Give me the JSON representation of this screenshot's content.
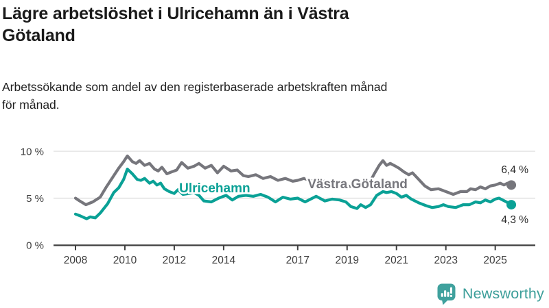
{
  "header": {
    "title_lines": [
      "Lägre arbetslöshet i Ulricehamn än i Västra",
      "Götaland"
    ],
    "subtitle_lines": [
      "Arbetssökande som andel av den registerbaserade arbetskraften månad",
      "för månad."
    ]
  },
  "footer": {
    "brand": "Newsworthy",
    "brand_color": "#3b9e99",
    "logo_icon": "bar-chart-speech-bubble"
  },
  "chart_data": {
    "type": "line",
    "title": "Lägre arbetslöshet i Ulricehamn än i Västra Götaland",
    "subtitle": "Arbetssökande som andel av den registerbaserade arbetskraften månad för månad.",
    "unit": "%",
    "grid": "horizontal-only",
    "legend_position": "inline-labels",
    "x_axis": {
      "ticks": [
        2008,
        2010,
        2012,
        2014,
        2017,
        2019,
        2021,
        2023,
        2025
      ],
      "tick_labels": [
        "2008",
        "2010",
        "2012",
        "2014",
        "2017",
        "2019",
        "2021",
        "2023",
        "2025"
      ],
      "range": [
        2007.1,
        2026.6
      ]
    },
    "y_axis": {
      "ticks": [
        0,
        5,
        10
      ],
      "tick_labels": [
        "0 %",
        "5 %",
        "10 %"
      ],
      "gridlines": [
        5,
        10
      ],
      "range": [
        0,
        11.9
      ]
    },
    "series": [
      {
        "name": "Västra Götaland",
        "color": "#76767c",
        "end_label": "6,4 %",
        "end_label_side": "above",
        "label_pos": [
          2017.4,
          6.05
        ],
        "points": [
          [
            2008.0,
            5.0
          ],
          [
            2008.17,
            4.7
          ],
          [
            2008.42,
            4.3
          ],
          [
            2008.7,
            4.6
          ],
          [
            2009.0,
            5.1
          ],
          [
            2009.25,
            6.2
          ],
          [
            2009.5,
            7.2
          ],
          [
            2009.75,
            8.2
          ],
          [
            2009.95,
            8.9
          ],
          [
            2010.1,
            9.5
          ],
          [
            2010.3,
            8.9
          ],
          [
            2010.45,
            8.7
          ],
          [
            2010.6,
            9.0
          ],
          [
            2010.8,
            8.5
          ],
          [
            2011.0,
            8.7
          ],
          [
            2011.2,
            8.1
          ],
          [
            2011.35,
            7.9
          ],
          [
            2011.5,
            8.3
          ],
          [
            2011.7,
            7.6
          ],
          [
            2011.9,
            7.8
          ],
          [
            2012.1,
            8.0
          ],
          [
            2012.3,
            8.8
          ],
          [
            2012.55,
            8.2
          ],
          [
            2012.8,
            8.4
          ],
          [
            2013.0,
            8.7
          ],
          [
            2013.25,
            8.2
          ],
          [
            2013.5,
            8.5
          ],
          [
            2013.75,
            7.7
          ],
          [
            2014.0,
            8.4
          ],
          [
            2014.3,
            7.9
          ],
          [
            2014.55,
            8.0
          ],
          [
            2014.8,
            7.4
          ],
          [
            2015.0,
            7.3
          ],
          [
            2015.3,
            7.5
          ],
          [
            2015.6,
            7.1
          ],
          [
            2015.9,
            7.3
          ],
          [
            2016.2,
            6.9
          ],
          [
            2016.5,
            7.1
          ],
          [
            2016.8,
            6.8
          ],
          [
            2017.0,
            6.9
          ],
          [
            2017.25,
            7.1
          ],
          [
            2017.5,
            6.9
          ],
          [
            2017.8,
            6.7
          ],
          [
            2018.1,
            6.8
          ],
          [
            2018.4,
            6.5
          ],
          [
            2018.7,
            6.4
          ],
          [
            2019.0,
            6.3
          ],
          [
            2019.3,
            6.2
          ],
          [
            2019.6,
            6.3
          ],
          [
            2019.9,
            6.6
          ],
          [
            2020.1,
            7.6
          ],
          [
            2020.3,
            8.5
          ],
          [
            2020.45,
            9.0
          ],
          [
            2020.6,
            8.5
          ],
          [
            2020.75,
            8.7
          ],
          [
            2020.9,
            8.5
          ],
          [
            2021.1,
            8.2
          ],
          [
            2021.3,
            7.8
          ],
          [
            2021.5,
            7.5
          ],
          [
            2021.65,
            7.7
          ],
          [
            2021.9,
            7.0
          ],
          [
            2022.15,
            6.3
          ],
          [
            2022.4,
            5.9
          ],
          [
            2022.7,
            6.0
          ],
          [
            2023.0,
            5.7
          ],
          [
            2023.3,
            5.4
          ],
          [
            2023.6,
            5.7
          ],
          [
            2023.85,
            5.7
          ],
          [
            2024.0,
            6.0
          ],
          [
            2024.2,
            5.9
          ],
          [
            2024.4,
            6.2
          ],
          [
            2024.6,
            6.0
          ],
          [
            2024.8,
            6.3
          ],
          [
            2025.0,
            6.4
          ],
          [
            2025.2,
            6.6
          ],
          [
            2025.35,
            6.4
          ],
          [
            2025.5,
            6.6
          ],
          [
            2025.65,
            6.4
          ]
        ]
      },
      {
        "name": "Ulricehamn",
        "color": "#0aa196",
        "end_label": "4,3 %",
        "end_label_side": "below",
        "label_pos": [
          2012.2,
          5.62
        ],
        "points": [
          [
            2008.0,
            3.3
          ],
          [
            2008.2,
            3.1
          ],
          [
            2008.45,
            2.8
          ],
          [
            2008.6,
            3.0
          ],
          [
            2008.8,
            2.9
          ],
          [
            2009.0,
            3.4
          ],
          [
            2009.3,
            4.4
          ],
          [
            2009.55,
            5.6
          ],
          [
            2009.75,
            6.1
          ],
          [
            2009.95,
            7.0
          ],
          [
            2010.1,
            8.1
          ],
          [
            2010.3,
            7.6
          ],
          [
            2010.5,
            7.0
          ],
          [
            2010.65,
            6.9
          ],
          [
            2010.8,
            7.1
          ],
          [
            2011.0,
            6.6
          ],
          [
            2011.15,
            6.8
          ],
          [
            2011.3,
            6.4
          ],
          [
            2011.45,
            6.6
          ],
          [
            2011.6,
            6.0
          ],
          [
            2011.8,
            5.7
          ],
          [
            2012.0,
            5.5
          ],
          [
            2012.15,
            5.9
          ],
          [
            2012.35,
            5.4
          ],
          [
            2012.6,
            5.5
          ],
          [
            2012.8,
            5.6
          ],
          [
            2013.0,
            5.3
          ],
          [
            2013.2,
            4.7
          ],
          [
            2013.5,
            4.6
          ],
          [
            2013.8,
            5.0
          ],
          [
            2014.1,
            5.3
          ],
          [
            2014.35,
            4.8
          ],
          [
            2014.6,
            5.2
          ],
          [
            2014.9,
            5.3
          ],
          [
            2015.2,
            5.2
          ],
          [
            2015.5,
            5.4
          ],
          [
            2015.8,
            5.1
          ],
          [
            2016.1,
            4.6
          ],
          [
            2016.4,
            5.1
          ],
          [
            2016.7,
            4.9
          ],
          [
            2017.0,
            5.0
          ],
          [
            2017.3,
            4.6
          ],
          [
            2017.75,
            5.2
          ],
          [
            2018.1,
            4.7
          ],
          [
            2018.4,
            4.9
          ],
          [
            2018.7,
            4.8
          ],
          [
            2018.95,
            4.6
          ],
          [
            2019.15,
            4.1
          ],
          [
            2019.4,
            3.9
          ],
          [
            2019.55,
            4.3
          ],
          [
            2019.75,
            4.0
          ],
          [
            2019.95,
            4.3
          ],
          [
            2020.2,
            5.3
          ],
          [
            2020.45,
            5.7
          ],
          [
            2020.6,
            5.6
          ],
          [
            2020.8,
            5.7
          ],
          [
            2021.0,
            5.5
          ],
          [
            2021.2,
            5.1
          ],
          [
            2021.4,
            5.3
          ],
          [
            2021.6,
            4.9
          ],
          [
            2021.9,
            4.5
          ],
          [
            2022.2,
            4.2
          ],
          [
            2022.45,
            4.0
          ],
          [
            2022.7,
            4.1
          ],
          [
            2022.9,
            4.3
          ],
          [
            2023.1,
            4.1
          ],
          [
            2023.4,
            4.0
          ],
          [
            2023.7,
            4.3
          ],
          [
            2023.95,
            4.3
          ],
          [
            2024.2,
            4.6
          ],
          [
            2024.4,
            4.5
          ],
          [
            2024.6,
            4.8
          ],
          [
            2024.8,
            4.6
          ],
          [
            2025.0,
            4.9
          ],
          [
            2025.15,
            5.0
          ],
          [
            2025.3,
            4.8
          ],
          [
            2025.45,
            4.6
          ],
          [
            2025.65,
            4.3
          ]
        ]
      }
    ],
    "colors": {
      "axis": "#3f3f3f",
      "gridline": "#dcdcdc",
      "tick_label": "#3d3d3d",
      "end_label_text": "#2b2b2b"
    }
  }
}
